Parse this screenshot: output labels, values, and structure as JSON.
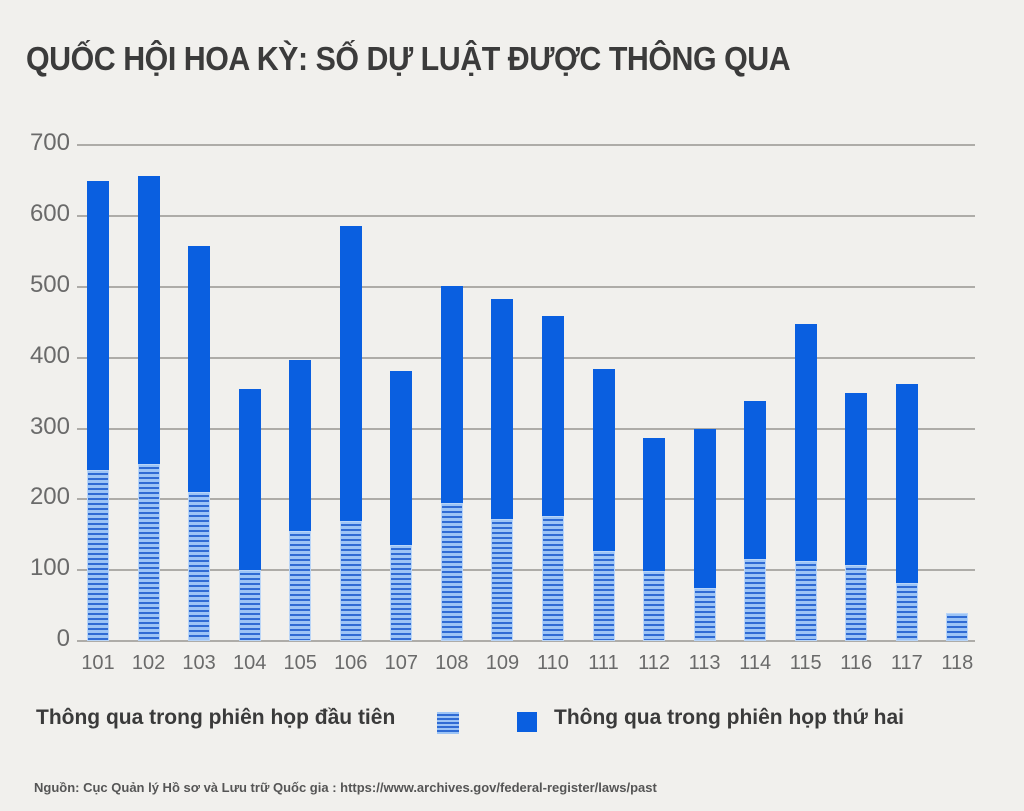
{
  "title": "QUỐC HỘI HOA KỲ: SỐ DỰ LUẬT ĐƯỢC THÔNG QUA",
  "legend": {
    "first": "Thông qua trong phiên họp đầu tiên",
    "second": "Thông qua trong phiên họp thứ hai"
  },
  "source": "Nguồn: Cục Quản lý Hồ sơ và Lưu trữ Quốc gia : https://www.archives.gov/federal-register/laws/past",
  "colors": {
    "second_session": "#0a5fe0",
    "first_session_stripe_dark": "#2f6bd4",
    "first_session_stripe_light": "#9cc4f6",
    "background": "#f1f0ed"
  },
  "chart_data": {
    "type": "bar",
    "stacked": true,
    "title": "QUỐC HỘI HOA KỲ: SỐ DỰ LUẬT ĐƯỢC THÔNG QUA",
    "xlabel": "",
    "ylabel": "",
    "ylim": [
      0,
      700
    ],
    "yticks": [
      0,
      100,
      200,
      300,
      400,
      500,
      600,
      700
    ],
    "grid": true,
    "legend_position": "bottom",
    "categories": [
      "101",
      "102",
      "103",
      "104",
      "105",
      "106",
      "107",
      "108",
      "109",
      "110",
      "111",
      "112",
      "113",
      "114",
      "115",
      "116",
      "117",
      "118"
    ],
    "series": [
      {
        "name": "Thông qua trong phiên họp đầu tiên",
        "style": "hatched",
        "values": [
          241,
          250,
          210,
          100,
          155,
          169,
          135,
          195,
          172,
          176,
          127,
          99,
          75,
          116,
          113,
          107,
          82,
          40
        ]
      },
      {
        "name": "Thông qua trong phiên họp thứ hai",
        "style": "solid",
        "values": [
          409,
          407,
          348,
          256,
          242,
          417,
          246,
          307,
          311,
          283,
          257,
          188,
          224,
          223,
          335,
          243,
          281,
          0
        ]
      }
    ],
    "totals": [
      650,
      657,
      558,
      356,
      397,
      586,
      381,
      502,
      483,
      459,
      384,
      287,
      299,
      339,
      448,
      350,
      363,
      40
    ]
  }
}
